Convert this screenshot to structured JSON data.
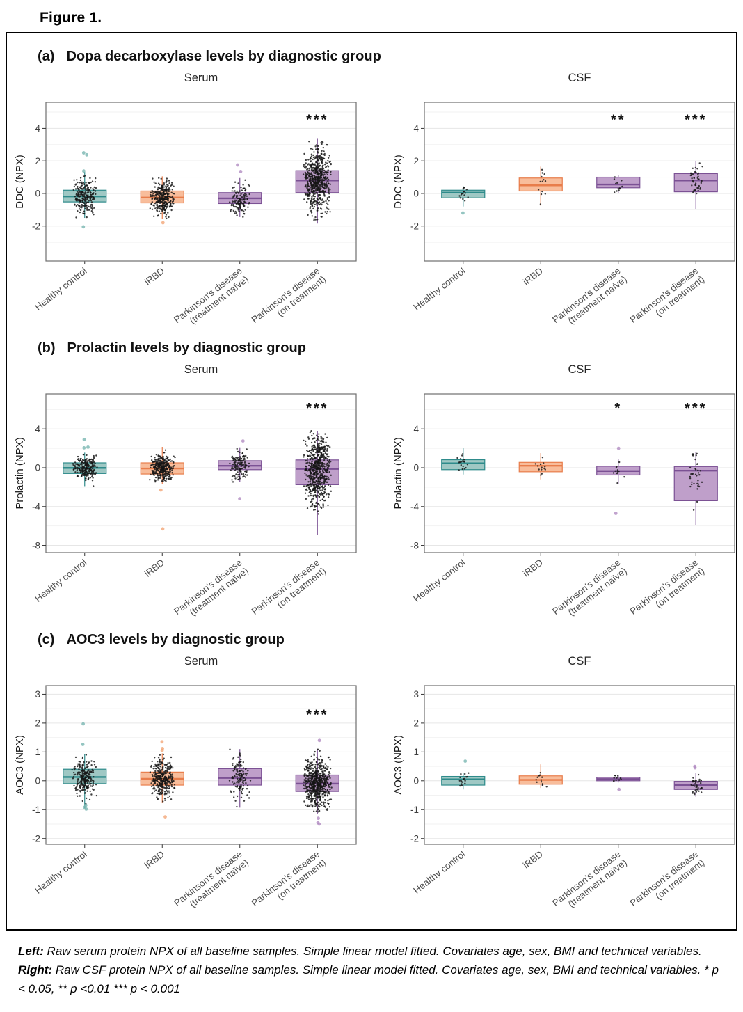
{
  "figure_label": "Figure 1.",
  "panels": [
    {
      "tag": "(a)",
      "title": "Dopa decarboxylase levels by diagnostic group"
    },
    {
      "tag": "(b)",
      "title": "Prolactin levels by diagnostic group"
    },
    {
      "tag": "(c)",
      "title": "AOC3 levels by diagnostic group"
    }
  ],
  "caption": {
    "parts": [
      {
        "text": "Left:"
      },
      {
        "text": " Raw serum protein NPX of all baseline samples. Simple linear model fitted. Covariates age, sex, BMI and technical variables. "
      },
      {
        "text": "Right:"
      },
      {
        "text": " Raw CSF protein NPX of all baseline samples. Simple linear model fitted. Covariates age, sex, BMI and technical variables. "
      },
      {
        "text": "* p < 0.05, ** p <0.01 *** p < 0.001"
      }
    ]
  },
  "chart_data": {
    "type": "box",
    "categories": [
      [
        "Healthy control"
      ],
      [
        "iRBD"
      ],
      [
        "Parkinson's disease",
        "(treatment naïve)"
      ],
      [
        "Parkinson's disease",
        "(on treatment)"
      ]
    ],
    "group_colors": [
      {
        "name": "teal",
        "fill": "#9fc8c4",
        "stroke": "#2e8b8b",
        "outlier": "#79b7b2"
      },
      {
        "name": "orange",
        "fill": "#f8bd9b",
        "stroke": "#e87d4b",
        "outlier": "#f3a678"
      },
      {
        "name": "purple",
        "fill": "#bf9fca",
        "stroke": "#7b5194",
        "outlier": "#b28cc2"
      },
      {
        "name": "purple",
        "fill": "#bf9fca",
        "stroke": "#7b5194",
        "outlier": "#b28cc2"
      }
    ],
    "charts": [
      {
        "panel": "a",
        "title": "Serum",
        "ylabel": "DDC (NPX)",
        "ylim": [
          -4.15,
          5.6
        ],
        "yticks": [
          -2,
          0,
          2,
          4
        ],
        "sig_y": 4.55,
        "groups": [
          {
            "whisker_low": -1.5,
            "q1": -0.52,
            "median": -0.18,
            "q3": 0.2,
            "whisker_high": 1.32,
            "outliers": [
              2.5,
              2.38,
              1.38,
              -2.05
            ],
            "significance": "",
            "jitter": {
              "n": 230,
              "sd": 0.55,
              "hw": 19
            }
          },
          {
            "whisker_low": -1.55,
            "q1": -0.58,
            "median": -0.25,
            "q3": 0.15,
            "whisker_high": 1.05,
            "outliers": [
              -1.8
            ],
            "significance": "",
            "jitter": {
              "n": 320,
              "sd": 0.5,
              "hw": 19
            }
          },
          {
            "whisker_low": -1.45,
            "q1": -0.62,
            "median": -0.3,
            "q3": 0.05,
            "whisker_high": 0.95,
            "outliers": [
              1.75,
              1.35
            ],
            "significance": "",
            "jitter": {
              "n": 130,
              "sd": 0.5,
              "hw": 16
            }
          },
          {
            "whisker_low": -1.85,
            "q1": 0.05,
            "median": 0.8,
            "q3": 1.4,
            "whisker_high": 3.4,
            "outliers": [],
            "significance": "***",
            "jitter": {
              "n": 620,
              "sd": 0.95,
              "hw": 21
            }
          }
        ]
      },
      {
        "panel": "a",
        "title": "CSF",
        "ylabel": "DDC (NPX)",
        "ylim": [
          -4.15,
          5.6
        ],
        "yticks": [
          -2,
          0,
          2,
          4
        ],
        "sig_y": 4.55,
        "groups": [
          {
            "whisker_low": -0.8,
            "q1": -0.27,
            "median": 0.05,
            "q3": 0.2,
            "whisker_high": 0.45,
            "outliers": [
              -1.2
            ],
            "significance": "",
            "jitter": {
              "n": 16,
              "sd": 0.35,
              "hw": 9
            }
          },
          {
            "whisker_low": -0.75,
            "q1": 0.15,
            "median": 0.5,
            "q3": 0.95,
            "whisker_high": 1.65,
            "outliers": [],
            "significance": "",
            "jitter": {
              "n": 13,
              "sd": 0.6,
              "hw": 9
            }
          },
          {
            "whisker_low": 0.02,
            "q1": 0.35,
            "median": 0.55,
            "q3": 1.0,
            "whisker_high": 1.15,
            "outliers": [],
            "significance": "**",
            "jitter": {
              "n": 12,
              "sd": 0.38,
              "hw": 9
            }
          },
          {
            "whisker_low": -0.95,
            "q1": 0.1,
            "median": 0.8,
            "q3": 1.22,
            "whisker_high": 2.0,
            "outliers": [],
            "significance": "***",
            "jitter": {
              "n": 42,
              "sd": 0.62,
              "hw": 11
            }
          }
        ]
      },
      {
        "panel": "b",
        "title": "Serum",
        "ylabel": "Prolactin (NPX)",
        "ylim": [
          -8.75,
          7.6
        ],
        "yticks": [
          -8,
          -4,
          0,
          4
        ],
        "sig_y": 6.15,
        "groups": [
          {
            "whisker_low": -1.9,
            "q1": -0.6,
            "median": -0.02,
            "q3": 0.5,
            "whisker_high": 1.55,
            "outliers": [
              2.9,
              2.12,
              2.05
            ],
            "significance": "",
            "jitter": {
              "n": 230,
              "sd": 0.6,
              "hw": 19
            }
          },
          {
            "whisker_low": -1.65,
            "q1": -0.65,
            "median": -0.08,
            "q3": 0.5,
            "whisker_high": 2.15,
            "outliers": [
              -2.3,
              -6.3
            ],
            "significance": "",
            "jitter": {
              "n": 320,
              "sd": 0.65,
              "hw": 19
            }
          },
          {
            "whisker_low": -1.5,
            "q1": -0.2,
            "median": 0.2,
            "q3": 0.72,
            "whisker_high": 2.1,
            "outliers": [
              2.75,
              -3.2
            ],
            "significance": "",
            "jitter": {
              "n": 130,
              "sd": 0.7,
              "hw": 16
            }
          },
          {
            "whisker_low": -6.9,
            "q1": -1.75,
            "median": -0.12,
            "q3": 0.8,
            "whisker_high": 3.8,
            "outliers": [],
            "significance": "***",
            "jitter": {
              "n": 620,
              "sd": 1.9,
              "hw": 21
            }
          }
        ]
      },
      {
        "panel": "b",
        "title": "CSF",
        "ylabel": "Prolactin (NPX)",
        "ylim": [
          -8.75,
          7.6
        ],
        "yticks": [
          -8,
          -4,
          0,
          4
        ],
        "sig_y": 6.15,
        "groups": [
          {
            "whisker_low": -0.7,
            "q1": -0.2,
            "median": 0.45,
            "q3": 0.82,
            "whisker_high": 2.0,
            "outliers": [],
            "significance": "",
            "jitter": {
              "n": 18,
              "sd": 0.55,
              "hw": 9
            }
          },
          {
            "whisker_low": -1.2,
            "q1": -0.42,
            "median": 0.2,
            "q3": 0.55,
            "whisker_high": 1.5,
            "outliers": [],
            "significance": "",
            "jitter": {
              "n": 14,
              "sd": 0.55,
              "hw": 9
            }
          },
          {
            "whisker_low": -1.7,
            "q1": -0.75,
            "median": -0.35,
            "q3": 0.15,
            "whisker_high": 0.9,
            "outliers": [
              2.0,
              -4.7
            ],
            "significance": "*",
            "jitter": {
              "n": 11,
              "sd": 0.6,
              "hw": 9
            }
          },
          {
            "whisker_low": -5.9,
            "q1": -3.4,
            "median": -0.3,
            "q3": 0.12,
            "whisker_high": 1.6,
            "outliers": [],
            "significance": "***",
            "jitter": {
              "n": 36,
              "sd": 1.7,
              "hw": 11
            }
          }
        ]
      },
      {
        "panel": "c",
        "title": "Serum",
        "ylabel": "AOC3 (NPX)",
        "ylim": [
          -2.2,
          3.3
        ],
        "yticks": [
          -2,
          -1,
          0,
          1,
          2,
          3
        ],
        "sig_y": 2.3,
        "groups": [
          {
            "whisker_low": -0.95,
            "q1": -0.1,
            "median": 0.13,
            "q3": 0.4,
            "whisker_high": 0.92,
            "outliers": [
              1.97,
              1.26,
              -0.85,
              -0.92,
              -0.98
            ],
            "significance": "",
            "jitter": {
              "n": 230,
              "sd": 0.33,
              "hw": 19
            }
          },
          {
            "whisker_low": -0.75,
            "q1": -0.15,
            "median": 0.07,
            "q3": 0.3,
            "whisker_high": 0.95,
            "outliers": [
              1.35,
              1.12,
              1.05,
              -1.25
            ],
            "significance": "",
            "jitter": {
              "n": 320,
              "sd": 0.33,
              "hw": 19
            }
          },
          {
            "whisker_low": -0.93,
            "q1": -0.15,
            "median": 0.1,
            "q3": 0.42,
            "whisker_high": 1.1,
            "outliers": [],
            "significance": "",
            "jitter": {
              "n": 130,
              "sd": 0.38,
              "hw": 16
            }
          },
          {
            "whisker_low": -1.15,
            "q1": -0.37,
            "median": -0.1,
            "q3": 0.2,
            "whisker_high": 1.1,
            "outliers": [
              1.4,
              -1.3,
              -1.45,
              -1.5
            ],
            "significance": "***",
            "jitter": {
              "n": 620,
              "sd": 0.42,
              "hw": 21
            }
          }
        ]
      },
      {
        "panel": "c",
        "title": "CSF",
        "ylabel": "AOC3 (NPX)",
        "ylim": [
          -2.2,
          3.3
        ],
        "yticks": [
          -2,
          -1,
          0,
          1,
          2,
          3
        ],
        "sig_y": 2.3,
        "groups": [
          {
            "whisker_low": -0.3,
            "q1": -0.15,
            "median": 0.05,
            "q3": 0.15,
            "whisker_high": 0.27,
            "outliers": [
              0.68
            ],
            "significance": "",
            "jitter": {
              "n": 16,
              "sd": 0.17,
              "hw": 9
            }
          },
          {
            "whisker_low": -0.25,
            "q1": -0.12,
            "median": 0.03,
            "q3": 0.17,
            "whisker_high": 0.57,
            "outliers": [],
            "significance": "",
            "jitter": {
              "n": 13,
              "sd": 0.2,
              "hw": 9
            }
          },
          {
            "whisker_low": -0.06,
            "q1": 0.0,
            "median": 0.06,
            "q3": 0.12,
            "whisker_high": 0.2,
            "outliers": [
              -0.3
            ],
            "significance": "",
            "jitter": {
              "n": 11,
              "sd": 0.1,
              "hw": 9
            }
          },
          {
            "whisker_low": -0.55,
            "q1": -0.3,
            "median": -0.15,
            "q3": -0.02,
            "whisker_high": 0.28,
            "outliers": [
              0.5,
              0.45
            ],
            "significance": "",
            "jitter": {
              "n": 36,
              "sd": 0.2,
              "hw": 11
            }
          }
        ]
      }
    ]
  }
}
